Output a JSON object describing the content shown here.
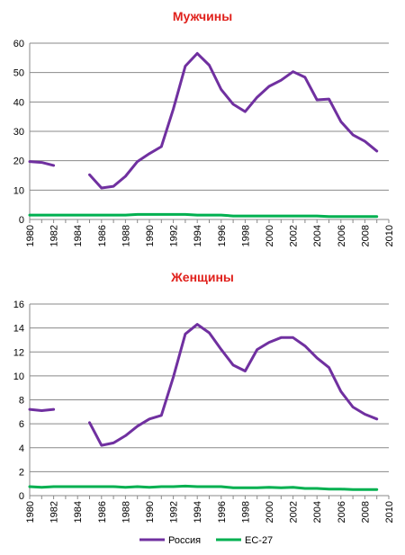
{
  "colors": {
    "russia": "#7030a0",
    "eu27": "#00b050",
    "grid": "#898989",
    "axis": "#898989",
    "title": "#e0201b"
  },
  "legend": {
    "russia": "Россия",
    "eu27": "ЕС-27"
  },
  "chart_data": [
    {
      "type": "line",
      "title": "Мужчины",
      "xlim": [
        1980,
        2010
      ],
      "ylim": [
        0,
        60
      ],
      "yticks": [
        0,
        10,
        20,
        30,
        40,
        50,
        60
      ],
      "xticks": [
        1980,
        1982,
        1984,
        1986,
        1988,
        1990,
        1992,
        1994,
        1996,
        1998,
        2000,
        2002,
        2004,
        2006,
        2008,
        2010
      ],
      "grid": true,
      "legend_position": "bottom",
      "series": [
        {
          "name": "Россия",
          "segments": [
            {
              "x": [
                1980,
                1981,
                1982
              ],
              "y": [
                19.7,
                19.4,
                18.4
              ]
            },
            {
              "x": [
                1985,
                1986,
                1987,
                1988,
                1989,
                1990,
                1991,
                1992,
                1993,
                1994,
                1995,
                1996,
                1997,
                1998,
                1999,
                2000,
                2001,
                2002,
                2003,
                2004,
                2005,
                2006,
                2007,
                2008,
                2009
              ],
              "y": [
                15.2,
                10.7,
                11.3,
                14.7,
                19.7,
                22.4,
                24.8,
                37.6,
                52.2,
                56.5,
                52.5,
                44.2,
                39.2,
                36.7,
                41.6,
                45.3,
                47.4,
                50.3,
                48.4,
                40.7,
                41.0,
                33.3,
                28.8,
                26.6,
                23.3
              ]
            }
          ]
        },
        {
          "name": "ЕС-27",
          "segments": [
            {
              "x": [
                1980,
                1981,
                1982,
                1983,
                1984,
                1985,
                1986,
                1987,
                1988,
                1989,
                1990,
                1991,
                1992,
                1993,
                1994,
                1995,
                1996,
                1997,
                1998,
                1999,
                2000,
                2001,
                2002,
                2003,
                2004,
                2005,
                2006,
                2007,
                2008,
                2009
              ],
              "y": [
                1.5,
                1.5,
                1.5,
                1.5,
                1.5,
                1.5,
                1.5,
                1.5,
                1.5,
                1.7,
                1.7,
                1.7,
                1.7,
                1.7,
                1.5,
                1.5,
                1.5,
                1.2,
                1.2,
                1.2,
                1.2,
                1.2,
                1.2,
                1.2,
                1.2,
                1.0,
                1.0,
                1.0,
                1.0,
                1.0
              ]
            }
          ]
        }
      ]
    },
    {
      "type": "line",
      "title": "Женщины",
      "xlim": [
        1980,
        2010
      ],
      "ylim": [
        0,
        16
      ],
      "yticks": [
        0,
        2,
        4,
        6,
        8,
        10,
        12,
        14,
        16
      ],
      "xticks": [
        1980,
        1982,
        1984,
        1986,
        1988,
        1990,
        1992,
        1994,
        1996,
        1998,
        2000,
        2002,
        2004,
        2006,
        2008,
        2010
      ],
      "grid": true,
      "legend_position": "bottom",
      "series": [
        {
          "name": "Россия",
          "segments": [
            {
              "x": [
                1980,
                1981,
                1982
              ],
              "y": [
                7.2,
                7.1,
                7.2
              ]
            },
            {
              "x": [
                1985,
                1986,
                1987,
                1988,
                1989,
                1990,
                1991,
                1992,
                1993,
                1994,
                1995,
                1996,
                1997,
                1998,
                1999,
                2000,
                2001,
                2002,
                2003,
                2004,
                2005,
                2006,
                2007,
                2008,
                2009
              ],
              "y": [
                6.1,
                4.2,
                4.4,
                5.0,
                5.8,
                6.4,
                6.7,
                9.9,
                13.5,
                14.3,
                13.6,
                12.2,
                10.9,
                10.4,
                12.2,
                12.8,
                13.2,
                13.2,
                12.5,
                11.5,
                10.7,
                8.7,
                7.4,
                6.8,
                6.4
              ]
            }
          ]
        },
        {
          "name": "ЕС-27",
          "segments": [
            {
              "x": [
                1980,
                1981,
                1982,
                1983,
                1984,
                1985,
                1986,
                1987,
                1988,
                1989,
                1990,
                1991,
                1992,
                1993,
                1994,
                1995,
                1996,
                1997,
                1998,
                1999,
                2000,
                2001,
                2002,
                2003,
                2004,
                2005,
                2006,
                2007,
                2008,
                2009
              ],
              "y": [
                0.75,
                0.7,
                0.75,
                0.75,
                0.75,
                0.75,
                0.75,
                0.75,
                0.7,
                0.75,
                0.7,
                0.75,
                0.75,
                0.8,
                0.75,
                0.75,
                0.75,
                0.65,
                0.65,
                0.65,
                0.7,
                0.65,
                0.7,
                0.6,
                0.6,
                0.55,
                0.55,
                0.5,
                0.5,
                0.5
              ]
            }
          ]
        }
      ]
    }
  ]
}
